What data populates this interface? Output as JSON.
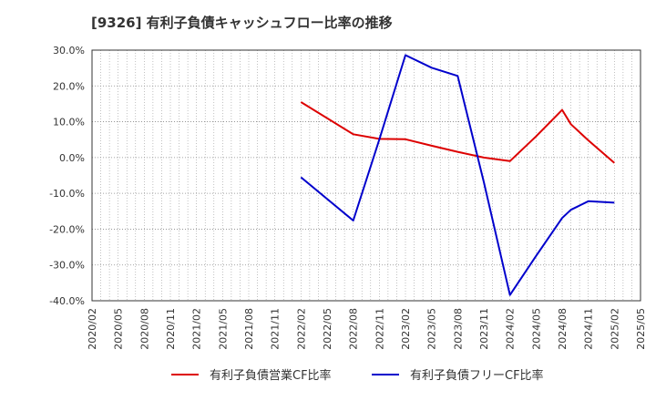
{
  "chart_data": {
    "type": "line",
    "title": "[9326]  有利子負債キャッシュフロー比率の推移",
    "xlabel": "",
    "ylabel": "",
    "ylim": [
      -40,
      30
    ],
    "yticks": [
      30,
      20,
      10,
      0,
      -10,
      -20,
      -30,
      -40
    ],
    "ytick_labels": [
      "30.0%",
      "20.0%",
      "10.0%",
      "0.0%",
      "-10.0%",
      "-20.0%",
      "-30.0%",
      "-40.0%"
    ],
    "x_tick_labels": [
      "2020/02",
      "2020/05",
      "2020/08",
      "2020/11",
      "2021/02",
      "2021/05",
      "2021/08",
      "2021/11",
      "2022/02",
      "2022/05",
      "2022/08",
      "2022/11",
      "2023/02",
      "2023/05",
      "2023/08",
      "2023/11",
      "2024/02",
      "2024/05",
      "2024/08",
      "2024/11",
      "2025/02",
      "2025/05"
    ],
    "grid": true,
    "legend_position": "bottom",
    "series": [
      {
        "name": "有利子負債営業CF比率",
        "color": "#dd0000",
        "points": [
          {
            "x": "2022/02",
            "y": 15.5
          },
          {
            "x": "2022/08",
            "y": 6.5
          },
          {
            "x": "2022/11",
            "y": 5.2
          },
          {
            "x": "2023/02",
            "y": 5.1
          },
          {
            "x": "2023/05",
            "y": 3.3
          },
          {
            "x": "2023/08",
            "y": 1.6
          },
          {
            "x": "2023/11",
            "y": 0.0
          },
          {
            "x": "2024/02",
            "y": -1.0
          },
          {
            "x": "2024/05",
            "y": 5.9
          },
          {
            "x": "2024/08",
            "y": 13.3
          },
          {
            "x": "2024/09",
            "y": 9.3
          },
          {
            "x": "2024/11",
            "y": 4.8
          },
          {
            "x": "2025/02",
            "y": -1.5
          }
        ]
      },
      {
        "name": "有利子負債フリーCF比率",
        "color": "#0000cc",
        "points": [
          {
            "x": "2022/02",
            "y": -5.5
          },
          {
            "x": "2022/08",
            "y": -17.6
          },
          {
            "x": "2022/11",
            "y": 5.0
          },
          {
            "x": "2023/02",
            "y": 28.6
          },
          {
            "x": "2023/05",
            "y": 25.1
          },
          {
            "x": "2023/08",
            "y": 22.8
          },
          {
            "x": "2023/11",
            "y": -6.8
          },
          {
            "x": "2024/02",
            "y": -38.4
          },
          {
            "x": "2024/05",
            "y": -27.5
          },
          {
            "x": "2024/08",
            "y": -16.9
          },
          {
            "x": "2024/09",
            "y": -14.6
          },
          {
            "x": "2024/11",
            "y": -12.2
          },
          {
            "x": "2025/02",
            "y": -12.6
          }
        ]
      }
    ]
  }
}
